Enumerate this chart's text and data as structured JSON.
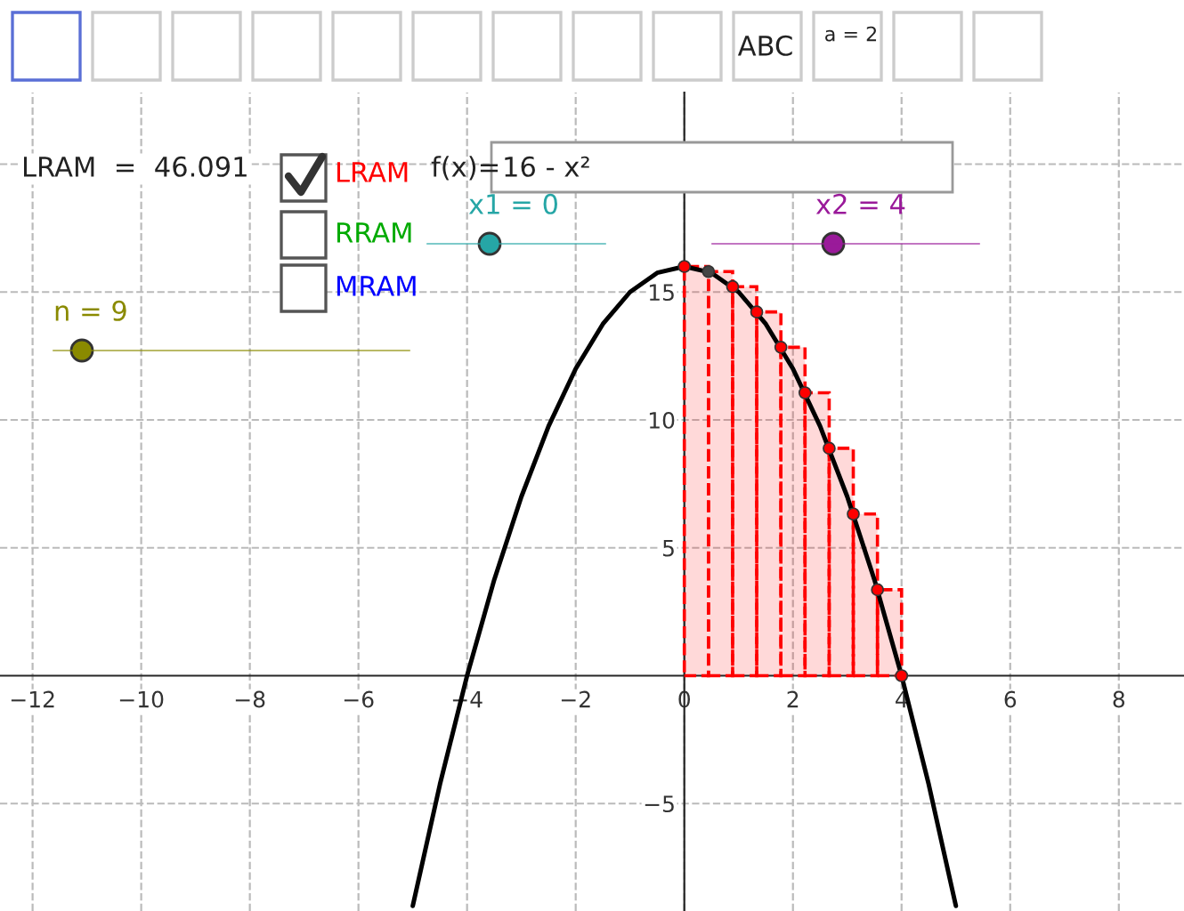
{
  "chart_data": {
    "type": "line",
    "series": [
      {
        "type": "histogram",
        "color": "#ff0000",
        "bins": [
          0,
          0.444,
          0.889,
          1.333,
          1.778,
          2.222,
          2.667,
          3.111,
          3.556,
          4
        ],
        "values": [
          16,
          15.8,
          15.21,
          14.22,
          12.84,
          11.06,
          8.89,
          6.32,
          3.36
        ]
      },
      {
        "color": "#000000",
        "x": [
          -5,
          -4.5,
          -4,
          -3.5,
          -3,
          -2.5,
          -2,
          -1.5,
          -1,
          -0.5,
          0,
          0.5,
          1,
          1.5,
          2,
          2.5,
          3,
          3.5,
          4,
          4.5,
          5
        ],
        "values": [
          -9,
          -4.25,
          0,
          3.75,
          7,
          9.75,
          12,
          13.75,
          15,
          15.75,
          16,
          15.75,
          15,
          13.75,
          12,
          9.75,
          7,
          3.75,
          0,
          -4.25,
          -9
        ]
      },
      {
        "type": "scatter",
        "colors": [
          "#ff0000",
          "#444444",
          "#ff0000",
          "#ff0000",
          "#ff0000",
          "#ff0000",
          "#ff0000",
          "#ff0000",
          "#ff0000",
          "#ff0000"
        ],
        "x": [
          0,
          0.444,
          0.889,
          1.333,
          1.778,
          2.222,
          2.667,
          3.111,
          3.556,
          4
        ],
        "values": [
          16,
          15.8,
          15.21,
          14.22,
          12.84,
          11.06,
          8.89,
          6.32,
          3.36,
          0
        ]
      }
    ],
    "xlim": [
      -12.6,
      9.2
    ],
    "ylim": [
      -9.2,
      22.8
    ],
    "xticks": [
      {
        "value": -12,
        "label": "−12"
      },
      {
        "value": -10,
        "label": "−10"
      },
      {
        "value": -8,
        "label": "−8"
      },
      {
        "value": -6,
        "label": "−6"
      },
      {
        "value": -4,
        "label": "−4"
      },
      {
        "value": -2,
        "label": "−2"
      },
      0,
      2,
      4,
      6,
      8
    ],
    "yticks": [
      {
        "value": -5,
        "label": "−5"
      },
      5,
      10,
      15,
      {
        "value": 20,
        "label": null
      }
    ],
    "grid": true,
    "annotations": [
      "LRAM  =  46.091",
      "LRAM",
      "RRAM",
      "MRAM",
      "f(x)=",
      "16 - x²",
      "x1 = 0",
      "x2 = 4",
      "n = 9",
      "ABC",
      "a = 2"
    ]
  }
}
